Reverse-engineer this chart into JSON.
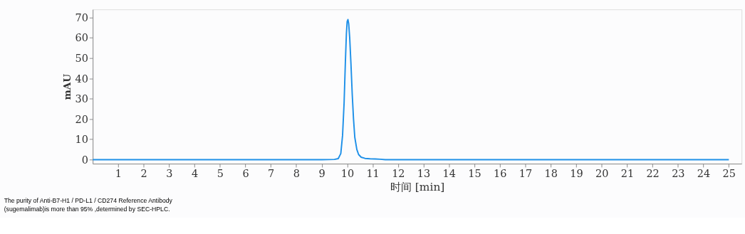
{
  "chart_data": {
    "type": "line",
    "xlabel": "时间 [min]",
    "ylabel": "mAU",
    "x": [
      0,
      1,
      2,
      3,
      4,
      5,
      6,
      7,
      8,
      9,
      9.5,
      9.65,
      9.75,
      9.82,
      9.88,
      9.93,
      9.97,
      10.0,
      10.03,
      10.06,
      10.1,
      10.15,
      10.2,
      10.25,
      10.3,
      10.38,
      10.45,
      10.55,
      10.7,
      10.9,
      11.1,
      11.3,
      11.5,
      12,
      13,
      14,
      15,
      16,
      17,
      18,
      19,
      20,
      21,
      22,
      23,
      24,
      25
    ],
    "series": [
      {
        "color": "#1e90e8",
        "values": [
          0,
          0,
          0,
          0,
          0,
          0,
          0,
          0,
          0,
          0,
          0.1,
          0.5,
          3,
          12,
          28,
          48,
          62,
          68,
          69,
          67,
          60,
          47,
          32,
          20,
          11,
          5,
          2.5,
          1.2,
          0.6,
          0.4,
          0.3,
          0.2,
          0,
          0,
          0,
          0,
          0,
          0,
          0,
          0,
          0,
          0,
          0,
          0,
          0,
          0,
          0
        ]
      }
    ],
    "xlim": [
      0,
      25.5
    ],
    "ylim": [
      -2,
      74
    ],
    "xticks": [
      1,
      2,
      3,
      4,
      5,
      6,
      7,
      8,
      9,
      10,
      11,
      12,
      13,
      14,
      15,
      16,
      17,
      18,
      19,
      20,
      21,
      22,
      23,
      24,
      25
    ],
    "yticks": [
      0,
      10,
      20,
      30,
      40,
      50,
      60,
      70
    ],
    "grid": false,
    "legend": false,
    "marker": "none",
    "line_style": "solid",
    "annotations": [
      "The purity of Anti-B7-H1 / PD-L1 / CD274 Reference Antibody",
      "(sugemalimab)is more than 95% ,determined by SEC-HPLC."
    ]
  }
}
